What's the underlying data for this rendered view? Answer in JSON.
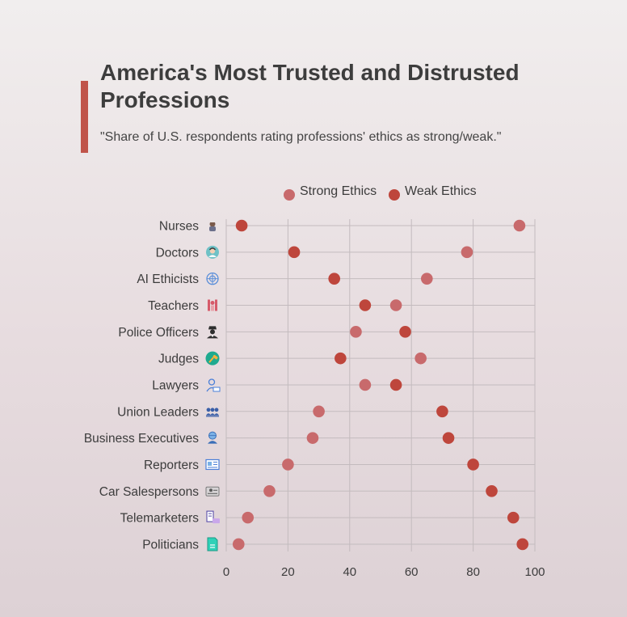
{
  "title": "America's Most Trusted and Distrusted Professions",
  "subtitle": "\"Share of U.S. respondents rating professions' ethics as strong/weak.\"",
  "colors": {
    "accent": "#c0544a",
    "strong": "#c86a6c",
    "weak": "#be463c",
    "grid": "#c3bbbe"
  },
  "chart_data": {
    "type": "scatter",
    "title": "America's Most Trusted and Distrusted Professions",
    "subtitle": "\"Share of U.S. respondents rating professions' ethics as strong/weak.\"",
    "xlabel": "",
    "ylabel": "",
    "xlim": [
      0,
      100
    ],
    "xticks": [
      0,
      20,
      40,
      60,
      80,
      100
    ],
    "grid": true,
    "legend_position": "top",
    "categories": [
      "Nurses",
      "Doctors",
      "AI Ethicists",
      "Teachers",
      "Police Officers",
      "Judges",
      "Lawyers",
      "Union Leaders",
      "Business Executives",
      "Reporters",
      "Car Salespersons",
      "Telemarketers",
      "Politicians"
    ],
    "category_icons": [
      "nurse-icon",
      "doctor-icon",
      "ai-brain-icon",
      "teacher-icon",
      "police-officer-icon",
      "judge-gavel-icon",
      "lawyer-icon",
      "union-group-icon",
      "executive-icon",
      "newspaper-icon",
      "car-salesperson-icon",
      "telemarketer-icon",
      "document-icon"
    ],
    "series": [
      {
        "name": "Strong Ethics",
        "values": [
          95,
          78,
          65,
          55,
          42,
          63,
          45,
          30,
          28,
          20,
          14,
          7,
          4
        ]
      },
      {
        "name": "Weak Ethics",
        "values": [
          5,
          22,
          35,
          45,
          58,
          37,
          55,
          70,
          72,
          80,
          86,
          93,
          96
        ]
      }
    ]
  }
}
